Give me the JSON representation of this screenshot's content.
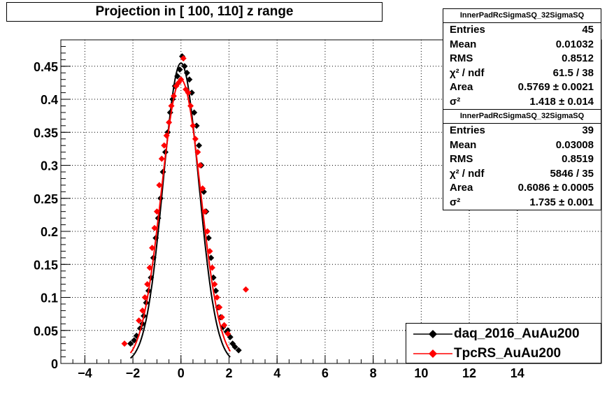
{
  "title": "Projection in [ 100, 110] z range",
  "stats": [
    {
      "name": "InnerPadRcSigmaSQ_32SigmaSQ",
      "rows": [
        {
          "k": "Entries",
          "v": "45"
        },
        {
          "k": "Mean",
          "v": "0.01032"
        },
        {
          "k": "RMS",
          "v": "0.8512"
        },
        {
          "k": "χ² / ndf",
          "v": "61.5 / 38"
        },
        {
          "k": "Area",
          "v": "0.5769 ± 0.0021"
        },
        {
          "k": "σ²",
          "v": "1.418 ± 0.014"
        }
      ]
    },
    {
      "name": "InnerPadRcSigmaSQ_32SigmaSQ",
      "rows": [
        {
          "k": "Entries",
          "v": "39"
        },
        {
          "k": "Mean",
          "v": "0.03008"
        },
        {
          "k": "RMS",
          "v": "0.8519"
        },
        {
          "k": "χ² / ndf",
          "v": "5846 / 35"
        },
        {
          "k": "Area",
          "v": "0.6086 ± 0.0005"
        },
        {
          "k": "σ²",
          "v": "1.735 ± 0.001"
        }
      ]
    }
  ],
  "legend": [
    {
      "label": "daq_2016_AuAu200",
      "color": "#000000"
    },
    {
      "label": "TpcRS_AuAu200",
      "color": "#ff0000"
    }
  ],
  "chart_data": {
    "type": "scatter",
    "title": "Projection in [ 100, 110] z range",
    "xlim": [
      -5,
      17.5
    ],
    "ylim": [
      0,
      0.49
    ],
    "xticks": [
      -4,
      -2,
      0,
      2,
      4,
      6,
      8,
      10,
      12,
      14
    ],
    "xtick_labels": [
      "−4",
      "−2",
      "0",
      "2",
      "4",
      "6",
      "8",
      "10",
      "12",
      "14"
    ],
    "yticks": [
      0,
      0.05,
      0.1,
      0.15,
      0.2,
      0.25,
      0.3,
      0.35,
      0.4,
      0.45
    ],
    "ytick_labels": [
      "0",
      "0.05",
      "0.1",
      "0.15",
      "0.2",
      "0.25",
      "0.3",
      "0.35",
      "0.4",
      "0.45"
    ],
    "grid": true,
    "series": [
      {
        "name": "daq_2016_AuAu200",
        "color": "#000000",
        "points": [
          [
            -2.1,
            0.03
          ],
          [
            -1.95,
            0.035
          ],
          [
            -1.85,
            0.042
          ],
          [
            -1.7,
            0.053
          ],
          [
            -1.55,
            0.072
          ],
          [
            -1.45,
            0.092
          ],
          [
            -1.35,
            0.11
          ],
          [
            -1.25,
            0.13
          ],
          [
            -1.15,
            0.16
          ],
          [
            -1.05,
            0.19
          ],
          [
            -0.95,
            0.22
          ],
          [
            -0.85,
            0.25
          ],
          [
            -0.75,
            0.29
          ],
          [
            -0.65,
            0.32
          ],
          [
            -0.55,
            0.35
          ],
          [
            -0.45,
            0.38
          ],
          [
            -0.35,
            0.4
          ],
          [
            -0.25,
            0.42
          ],
          [
            -0.15,
            0.435
          ],
          [
            -0.05,
            0.445
          ],
          [
            0.05,
            0.465
          ],
          [
            0.15,
            0.45
          ],
          [
            0.25,
            0.44
          ],
          [
            0.35,
            0.43
          ],
          [
            0.45,
            0.41
          ],
          [
            0.55,
            0.38
          ],
          [
            0.65,
            0.36
          ],
          [
            0.75,
            0.33
          ],
          [
            0.85,
            0.3
          ],
          [
            0.95,
            0.26
          ],
          [
            1.05,
            0.23
          ],
          [
            1.15,
            0.19
          ],
          [
            1.25,
            0.16
          ],
          [
            1.35,
            0.13
          ],
          [
            1.45,
            0.11
          ],
          [
            1.55,
            0.085
          ],
          [
            1.65,
            0.07
          ],
          [
            1.75,
            0.055
          ],
          [
            1.9,
            0.048
          ],
          [
            2.05,
            0.04
          ],
          [
            2.15,
            0.03
          ],
          [
            2.25,
            0.025
          ],
          [
            2.4,
            0.02
          ],
          [
            -1.6,
            0.06
          ],
          [
            1.95,
            0.05
          ]
        ],
        "curve_sigma2": 1.418,
        "curve_peak": 0.455
      },
      {
        "name": "TpcRS_AuAu200",
        "color": "#ff0000",
        "points": [
          [
            -2.35,
            0.03
          ],
          [
            -1.75,
            0.065
          ],
          [
            -1.6,
            0.08
          ],
          [
            -1.5,
            0.1
          ],
          [
            -1.4,
            0.12
          ],
          [
            -1.3,
            0.145
          ],
          [
            -1.2,
            0.175
          ],
          [
            -1.1,
            0.205
          ],
          [
            -1.0,
            0.23
          ],
          [
            -0.9,
            0.27
          ],
          [
            -0.8,
            0.31
          ],
          [
            -0.7,
            0.33
          ],
          [
            -0.6,
            0.345
          ],
          [
            -0.5,
            0.365
          ],
          [
            -0.4,
            0.39
          ],
          [
            -0.3,
            0.405
          ],
          [
            -0.2,
            0.42
          ],
          [
            -0.1,
            0.425
          ],
          [
            0.0,
            0.43
          ],
          [
            0.1,
            0.462
          ],
          [
            0.2,
            0.415
          ],
          [
            0.3,
            0.41
          ],
          [
            0.4,
            0.39
          ],
          [
            0.5,
            0.36
          ],
          [
            0.6,
            0.34
          ],
          [
            0.7,
            0.32
          ],
          [
            0.8,
            0.3
          ],
          [
            0.9,
            0.265
          ],
          [
            1.0,
            0.23
          ],
          [
            1.1,
            0.2
          ],
          [
            1.2,
            0.17
          ],
          [
            1.3,
            0.145
          ],
          [
            1.4,
            0.12
          ],
          [
            1.5,
            0.1
          ],
          [
            1.6,
            0.085
          ],
          [
            1.7,
            0.07
          ],
          [
            1.8,
            0.058
          ],
          [
            2.7,
            0.112
          ],
          [
            1.95,
            0.045
          ]
        ],
        "curve_sigma2": 1.735,
        "curve_peak": 0.43
      }
    ]
  }
}
